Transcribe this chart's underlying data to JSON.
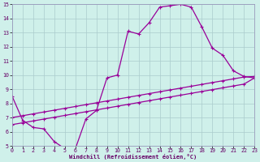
{
  "xlabel": "Windchill (Refroidissement éolien,°C)",
  "xlim": [
    0,
    23
  ],
  "ylim": [
    5,
    15
  ],
  "bg_color": "#cff0ea",
  "line_color": "#990099",
  "line1_x": [
    0,
    1,
    2,
    3,
    4,
    5,
    6,
    7,
    8,
    9,
    10,
    11,
    12,
    13,
    14,
    15,
    16,
    17,
    18,
    19,
    20,
    21,
    22,
    23
  ],
  "line1_y": [
    8.5,
    6.8,
    6.3,
    6.2,
    5.3,
    4.8,
    4.8,
    6.9,
    7.5,
    9.8,
    10.0,
    13.1,
    12.9,
    13.7,
    14.8,
    14.9,
    15.0,
    14.8,
    13.4,
    11.9,
    11.4,
    10.3,
    9.9,
    9.8
  ],
  "line2_x": [
    0,
    1,
    2,
    3,
    4,
    5,
    6,
    7,
    8,
    9,
    10,
    11,
    12,
    13,
    14,
    15,
    16,
    17,
    18,
    19,
    20,
    21,
    22,
    23
  ],
  "line2_y": [
    7.0,
    7.13,
    7.26,
    7.39,
    7.52,
    7.65,
    7.78,
    7.91,
    8.04,
    8.17,
    8.3,
    8.43,
    8.56,
    8.69,
    8.82,
    8.95,
    9.08,
    9.21,
    9.34,
    9.47,
    9.6,
    9.73,
    9.86,
    9.9
  ],
  "line3_x": [
    0,
    1,
    2,
    3,
    4,
    5,
    6,
    7,
    8,
    9,
    10,
    11,
    12,
    13,
    14,
    15,
    16,
    17,
    18,
    19,
    20,
    21,
    22,
    23
  ],
  "line3_y": [
    6.5,
    6.63,
    6.76,
    6.89,
    7.02,
    7.15,
    7.28,
    7.41,
    7.54,
    7.67,
    7.8,
    7.93,
    8.06,
    8.19,
    8.32,
    8.45,
    8.58,
    8.71,
    8.84,
    8.97,
    9.1,
    9.23,
    9.36,
    9.8
  ],
  "xtick_labels": [
    "0",
    "1",
    "2",
    "3",
    "4",
    "5",
    "6",
    "7",
    "8",
    "9",
    "1011121314151617181920212223"
  ],
  "grid_color": "#aacccc"
}
